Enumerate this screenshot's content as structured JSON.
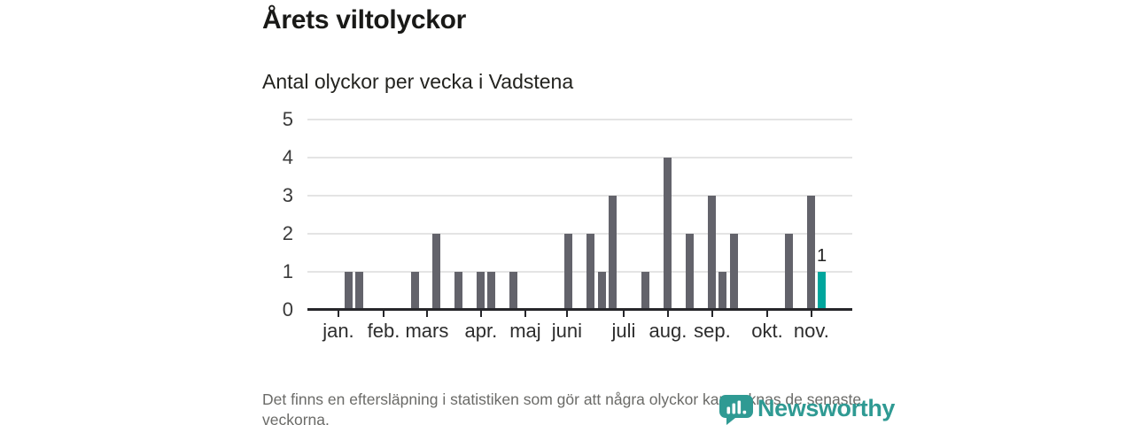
{
  "header": {
    "title": "Årets viltolyckor",
    "subtitle": "Antal olyckor per vecka i Vadstena"
  },
  "footer": {
    "note": "Det finns en eftersläpning i statistiken som gör att några olyckor kan saknas de senaste veckorna."
  },
  "branding": {
    "name": "Newsworthy",
    "icon": "newsworthy-speech-bubble-barchart-icon",
    "icon_color": "#2F9A93",
    "text_color": "#2F9A93"
  },
  "chart_data": {
    "type": "bar",
    "title": "Årets viltolyckor",
    "subtitle": "Antal olyckor per vecka i Vadstena",
    "xlabel": "",
    "ylabel": "",
    "x_unit": "vecka",
    "first_week": 1,
    "values": [
      0,
      0,
      0,
      1,
      1,
      0,
      0,
      0,
      0,
      1,
      0,
      2,
      0,
      1,
      0,
      1,
      1,
      0,
      1,
      0,
      0,
      0,
      0,
      2,
      0,
      2,
      1,
      3,
      0,
      0,
      1,
      0,
      4,
      0,
      2,
      0,
      3,
      1,
      2,
      0,
      0,
      0,
      0,
      2,
      0,
      3,
      1
    ],
    "highlight_week": 47,
    "annotation": {
      "week": 47,
      "label": "1"
    },
    "ylim": [
      0,
      5
    ],
    "y_ticks": [
      0,
      1,
      2,
      3,
      4,
      5
    ],
    "x_ticks": [
      {
        "label": "jan.",
        "week": 3.07
      },
      {
        "label": "feb.",
        "week": 7.18
      },
      {
        "label": "mars",
        "week": 11.12
      },
      {
        "label": "apr.",
        "week": 16.03
      },
      {
        "label": "maj",
        "week": 20.06
      },
      {
        "label": "juni",
        "week": 23.84
      },
      {
        "label": "juli",
        "week": 29.0
      },
      {
        "label": "aug.",
        "week": 33.02
      },
      {
        "label": "sep.",
        "week": 37.05
      },
      {
        "label": "okt.",
        "week": 42.04
      },
      {
        "label": "nov.",
        "week": 46.06
      }
    ],
    "x_domain_weeks": [
      1,
      49.8
    ],
    "grid": "horizontal",
    "legend": "none",
    "colors": {
      "bar": "#63636B",
      "highlight": "#00A69D",
      "grid": "#E4E4E4",
      "axis": "#26262A"
    }
  }
}
